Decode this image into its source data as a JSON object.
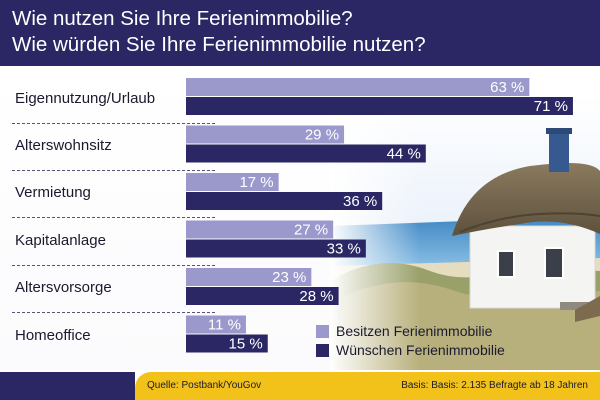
{
  "header": {
    "title_line1": "Wie nutzen Sie Ihre Ferienimmobilie?",
    "title_line2": "Wie würden Sie Ihre Ferienimmobilie nutzen?"
  },
  "colors": {
    "header_bg": "#2b2764",
    "series_owned": "#9b99cc",
    "series_wanted": "#2b2764",
    "footer_accent": "#f2c21a"
  },
  "chart_data": {
    "type": "bar",
    "orientation": "horizontal",
    "title": "Wie nutzen Sie Ihre Ferienimmobilie? Wie würden Sie Ihre Ferienimmobilie nutzen?",
    "categories": [
      "Eigennutzung/Urlaub",
      "Alterswohnsitz",
      "Vermietung",
      "Kapitalanlage",
      "Altersvorsorge",
      "Homeoffice"
    ],
    "series": [
      {
        "name": "Besitzen Ferienimmobilie",
        "values": [
          63,
          29,
          17,
          27,
          23,
          11
        ],
        "labels": [
          "63 %",
          "29 %",
          "17 %",
          "27 %",
          "23 %",
          "11 %"
        ]
      },
      {
        "name": "Wünschen Ferienimmobilie",
        "values": [
          71,
          44,
          36,
          33,
          28,
          15
        ],
        "labels": [
          "71 %",
          "44 %",
          "36 %",
          "33 %",
          "28 %",
          "15 %"
        ]
      }
    ],
    "unit": "%",
    "legend_position": "bottom-right",
    "grid": false
  },
  "footer": {
    "source": "Quelle: Postbank/YouGov",
    "base": "Basis: Basis:  2.135 Befragte ab 18 Jahren"
  }
}
